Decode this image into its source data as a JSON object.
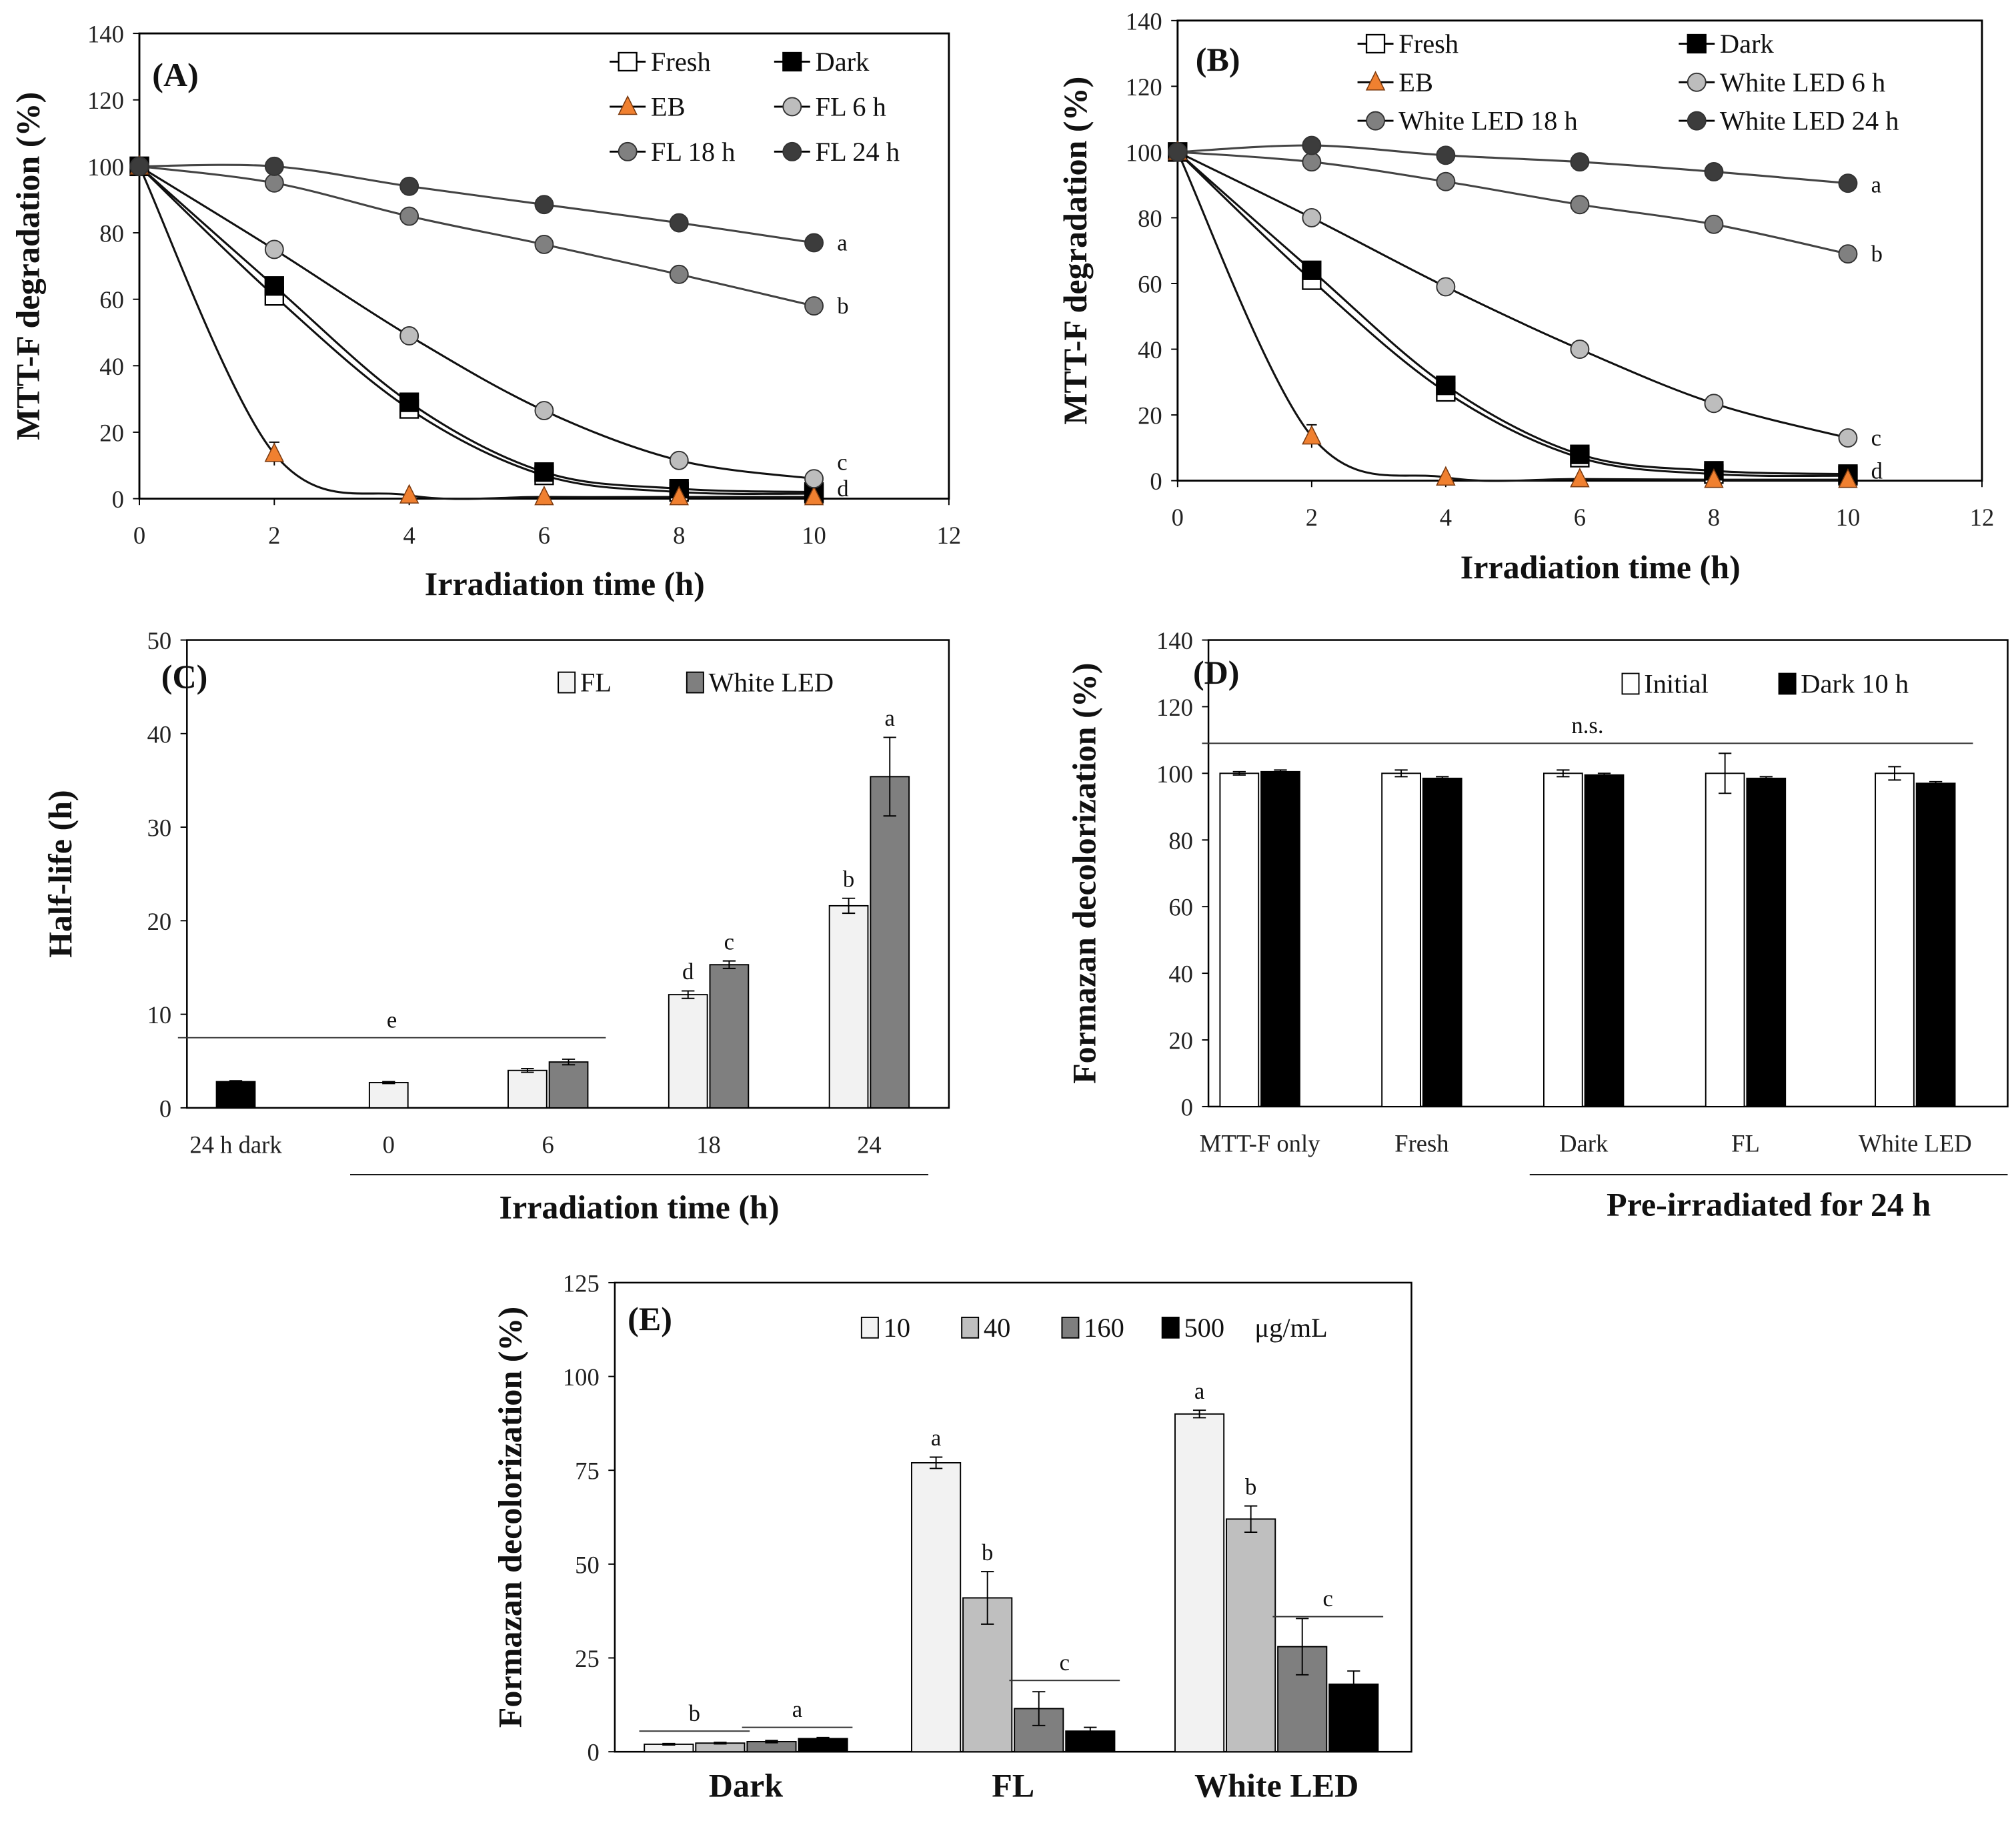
{
  "chart_data": [
    {
      "panel": "(A)",
      "type": "line",
      "xlabel": "Irradiation time (h)",
      "ylabel": "MTT-F degradation (%)",
      "xlim": [
        0,
        12
      ],
      "ylim": [
        0,
        140
      ],
      "xstep": 2,
      "ystep": 20,
      "x": [
        0,
        2,
        4,
        6,
        8,
        10
      ],
      "legend_placement": "top-right",
      "series": [
        {
          "name": "Fresh",
          "marker": "square",
          "color": "#ffffff",
          "values": [
            100,
            61,
            27,
            7,
            2,
            1.5
          ]
        },
        {
          "name": "Dark",
          "marker": "square",
          "color": "#000000",
          "values": [
            100,
            64,
            29,
            8,
            3,
            2
          ]
        },
        {
          "name": "EB",
          "marker": "triangle",
          "color": "#f08030",
          "values": [
            100,
            13.5,
            1,
            0.5,
            0.5,
            0.5
          ],
          "error": [
            0,
            3.5,
            0,
            0,
            0,
            0
          ]
        },
        {
          "name": "FL 6 h",
          "marker": "circle",
          "color": "#bdbdbd",
          "values": [
            100,
            75,
            49,
            26.5,
            11.5,
            6
          ]
        },
        {
          "name": "FL 18 h",
          "marker": "circle",
          "color": "#808080",
          "values": [
            100,
            95,
            85,
            76.5,
            67.5,
            58
          ]
        },
        {
          "name": "FL 24 h",
          "marker": "circle",
          "color": "#3c3c3c",
          "values": [
            100,
            100,
            94,
            88.5,
            83,
            77
          ]
        }
      ],
      "letters": [
        {
          "text": "a",
          "y": 77
        },
        {
          "text": "b",
          "y": 58
        },
        {
          "text": "c",
          "y": 11
        },
        {
          "text": "d",
          "y": 3
        }
      ]
    },
    {
      "panel": "(B)",
      "type": "line",
      "xlabel": "Irradiation time (h)",
      "ylabel": "MTT-F degradation (%)",
      "xlim": [
        0,
        12
      ],
      "ylim": [
        0,
        140
      ],
      "xstep": 2,
      "ystep": 20,
      "x": [
        0,
        2,
        4,
        6,
        8,
        10
      ],
      "legend_placement": "top",
      "series": [
        {
          "name": "Fresh",
          "marker": "square",
          "color": "#ffffff",
          "values": [
            100,
            61,
            27,
            7,
            2,
            1.5
          ]
        },
        {
          "name": "Dark",
          "marker": "square",
          "color": "#000000",
          "values": [
            100,
            64,
            29,
            8,
            3,
            2
          ]
        },
        {
          "name": "EB",
          "marker": "triangle",
          "color": "#f08030",
          "values": [
            100,
            13.5,
            1,
            0.5,
            0.3,
            0.3
          ],
          "error": [
            0,
            3.5,
            0,
            0,
            0,
            0
          ]
        },
        {
          "name": "White LED 6 h",
          "marker": "circle",
          "color": "#bdbdbd",
          "values": [
            100,
            80,
            59,
            40,
            23.5,
            13
          ]
        },
        {
          "name": "White LED 18 h",
          "marker": "circle",
          "color": "#808080",
          "values": [
            100,
            97,
            91,
            84,
            78,
            69
          ]
        },
        {
          "name": "White LED 24 h",
          "marker": "circle",
          "color": "#3c3c3c",
          "values": [
            100,
            102,
            99,
            97,
            94,
            90.5
          ]
        }
      ],
      "letters": [
        {
          "text": "a",
          "y": 90
        },
        {
          "text": "b",
          "y": 69
        },
        {
          "text": "c",
          "y": 13
        },
        {
          "text": "d",
          "y": 3
        }
      ]
    },
    {
      "panel": "(C)",
      "type": "bar",
      "xlabel": "Irradiation time (h)",
      "ylabel": "Half-life (h)",
      "ylim": [
        0,
        50
      ],
      "ystep": 10,
      "categories": [
        "24 h dark",
        "0",
        "6",
        "18",
        "24"
      ],
      "legend_placement": "top-right",
      "series": [
        {
          "name": "FL",
          "color": "#f2f2f2",
          "legend": true,
          "values": [
            null,
            2.7,
            4.0,
            12.1,
            21.6
          ],
          "error": [
            0,
            0.1,
            0.2,
            0.4,
            0.8
          ]
        },
        {
          "name": "White LED",
          "color": "#7f7f7f",
          "legend": true,
          "values": [
            null,
            null,
            4.9,
            15.3,
            35.4
          ],
          "error": [
            0,
            0,
            0.3,
            0.4,
            4.2
          ]
        },
        {
          "name": "24 h dark",
          "color": "#000000",
          "legend": false,
          "values": [
            2.8,
            null,
            null,
            null,
            null
          ],
          "error": [
            0.1,
            0,
            0,
            0,
            0
          ]
        }
      ],
      "letters": [
        {
          "text": "d",
          "category": 3,
          "series": 0
        },
        {
          "text": "c",
          "category": 3,
          "series": 1
        },
        {
          "text": "b",
          "category": 4,
          "series": 0
        },
        {
          "text": "a",
          "category": 4,
          "series": 1
        }
      ],
      "span_labels": [
        {
          "text": "e",
          "from": 0,
          "to": 2,
          "y": 7.5
        }
      ]
    },
    {
      "panel": "(D)",
      "type": "bar",
      "xlabel": "Pre-irradiated for 24 h",
      "ylabel": "Formazan decolorization (%)",
      "ylim": [
        0,
        140
      ],
      "ystep": 20,
      "categories": [
        "MTT-F only",
        "Fresh",
        "Dark",
        "FL",
        "White LED"
      ],
      "legend_placement": "top-right",
      "series": [
        {
          "name": "Initial",
          "color": "#ffffff",
          "legend": true,
          "values": [
            100,
            100,
            100,
            100,
            100
          ],
          "error": [
            0.5,
            1,
            1,
            6,
            2
          ]
        },
        {
          "name": "Dark 10 h",
          "color": "#000000",
          "legend": true,
          "values": [
            100.5,
            98.5,
            99.5,
            98.5,
            97
          ],
          "error": [
            0.5,
            0.5,
            0.5,
            0.5,
            0.5
          ]
        }
      ],
      "span_labels": [
        {
          "text": "n.s.",
          "from": 0,
          "to": 4,
          "y": 109
        }
      ]
    },
    {
      "panel": "(E)",
      "type": "bar",
      "xlabel": "",
      "ylabel": "Formazan decolorization (%)",
      "ylim": [
        0,
        125
      ],
      "ystep": 25,
      "categories": [
        "Dark",
        "FL",
        "White LED"
      ],
      "legend_placement": "top",
      "legend_unit": "μg/mL",
      "series": [
        {
          "name": "10",
          "color": "#f2f2f2",
          "legend": true,
          "values": [
            2.0,
            77,
            90
          ],
          "error": [
            0.2,
            1.5,
            1
          ]
        },
        {
          "name": "40",
          "color": "#bfbfbf",
          "legend": true,
          "values": [
            2.3,
            41,
            62
          ],
          "error": [
            0.2,
            7,
            3.5
          ]
        },
        {
          "name": "160",
          "color": "#7f7f7f",
          "legend": true,
          "values": [
            2.7,
            11.5,
            28
          ],
          "error": [
            0.3,
            4.5,
            7.5
          ]
        },
        {
          "name": "500",
          "color": "#000000",
          "legend": true,
          "values": [
            3.5,
            5.5,
            18
          ],
          "error": [
            0.3,
            1,
            3.5
          ]
        }
      ],
      "letters": [
        {
          "text": "a",
          "category": 1,
          "series": 0
        },
        {
          "text": "b",
          "category": 1,
          "series": 1
        },
        {
          "text": "a",
          "category": 2,
          "series": 0
        },
        {
          "text": "b",
          "category": 2,
          "series": 1
        }
      ],
      "bar_spans": [
        {
          "text": "b",
          "category": 0,
          "from": 0,
          "to": 1,
          "y": 5.5
        },
        {
          "text": "a",
          "category": 0,
          "from": 2,
          "to": 3,
          "y": 6.5
        },
        {
          "text": "c",
          "category": 1,
          "from": 2,
          "to": 3,
          "y": 19
        },
        {
          "text": "c",
          "category": 2,
          "from": 2,
          "to": 3,
          "y": 36
        }
      ]
    }
  ]
}
